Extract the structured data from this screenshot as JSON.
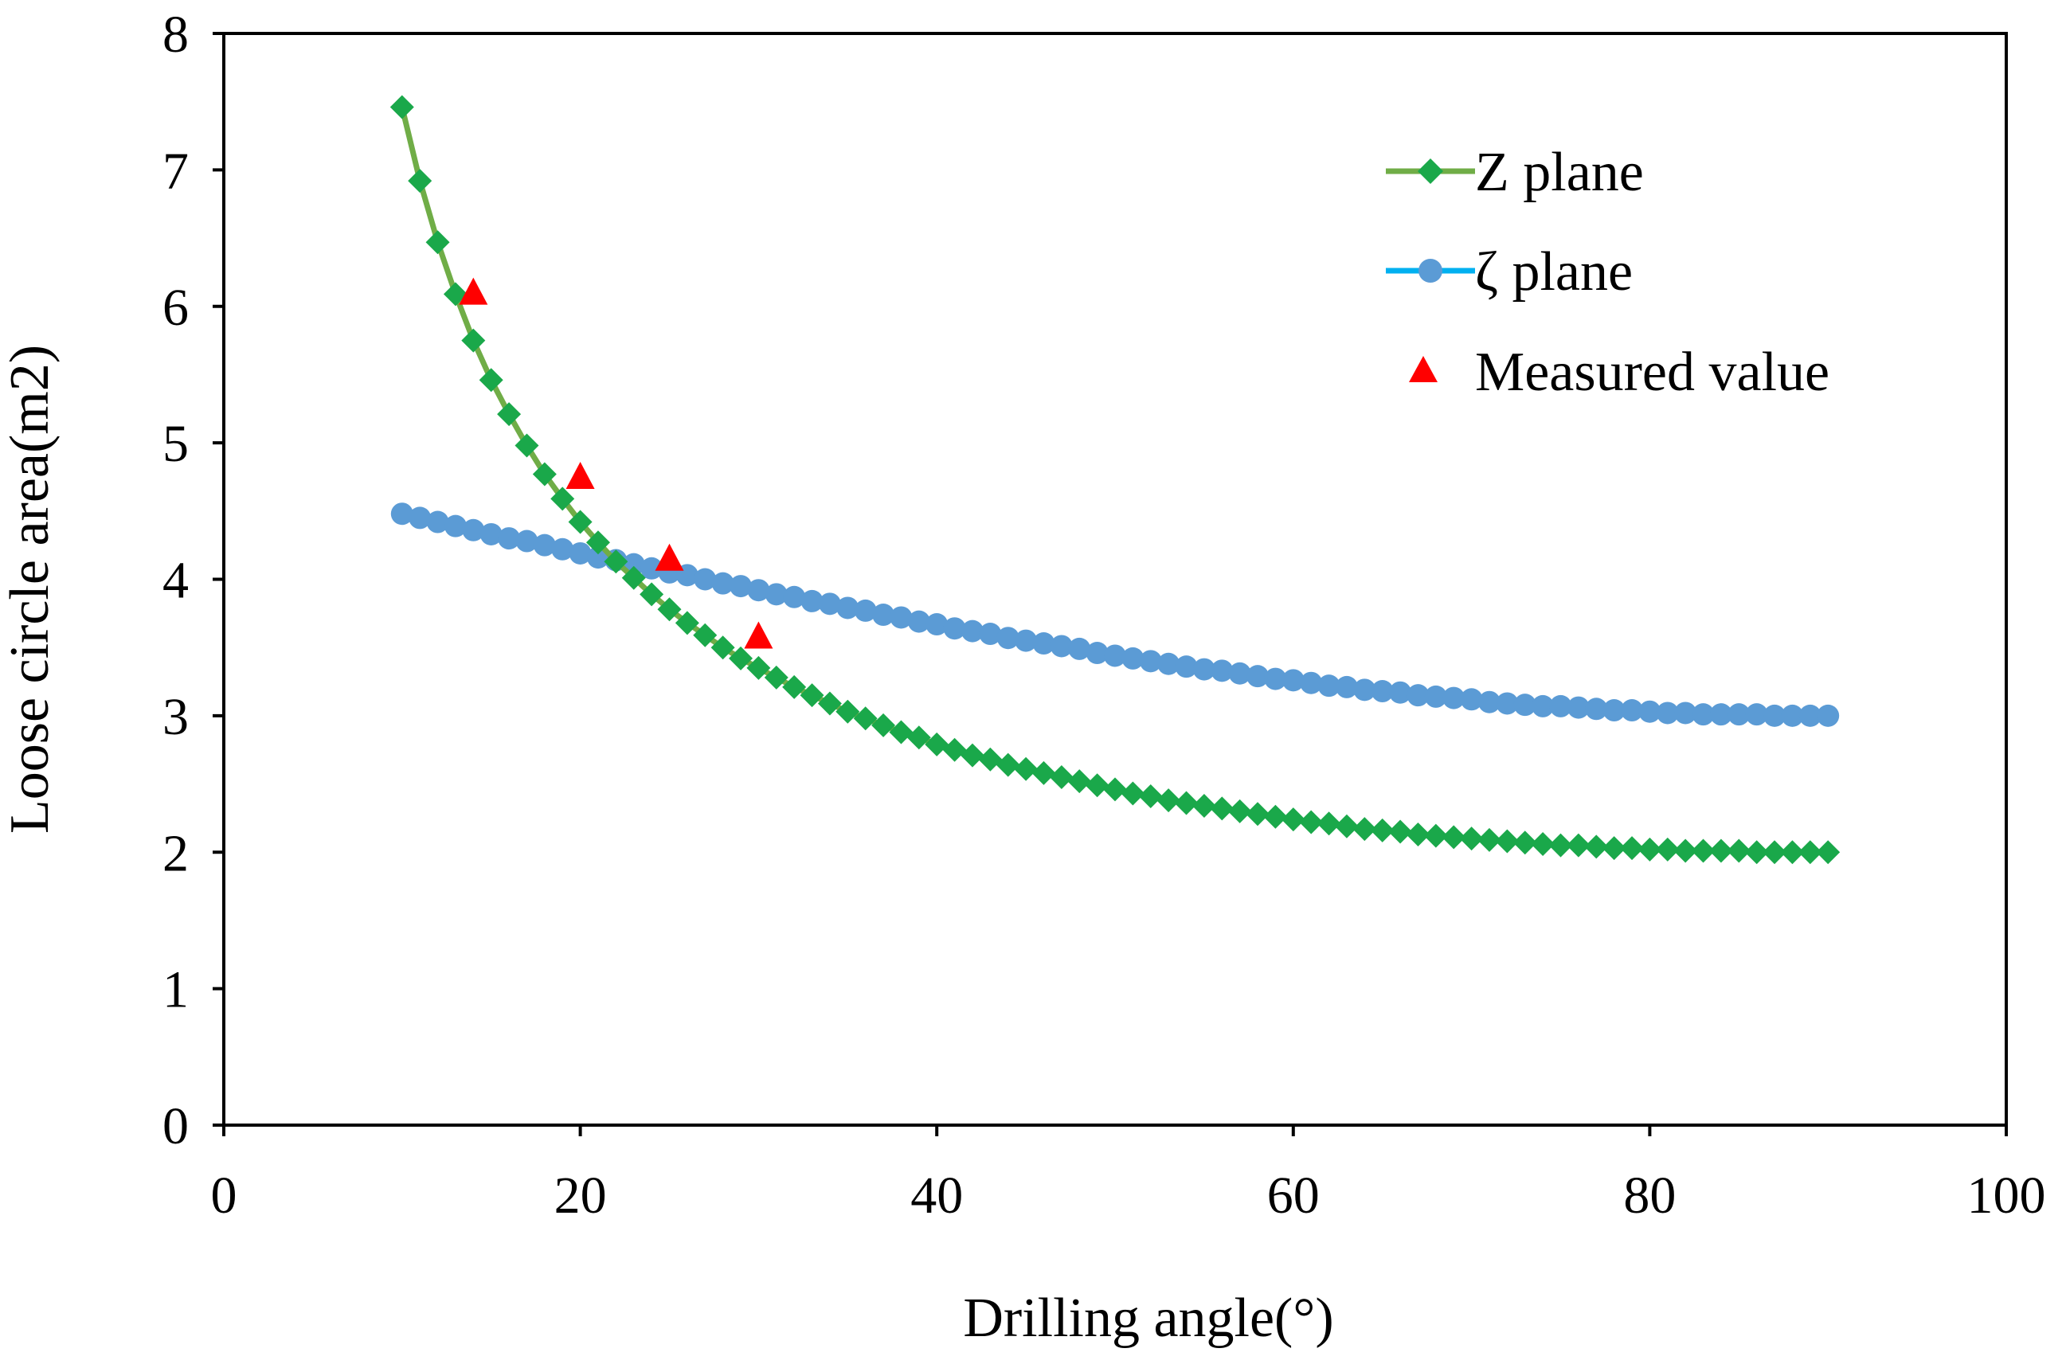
{
  "chart_data": {
    "type": "line",
    "title": "",
    "xlabel": "Drilling angle(°)",
    "ylabel": "Loose circle area(m2)",
    "xlim": [
      0,
      100
    ],
    "ylim": [
      0,
      8
    ],
    "xticks": [
      0,
      20,
      40,
      60,
      80,
      100
    ],
    "yticks": [
      0,
      1,
      2,
      3,
      4,
      5,
      6,
      7,
      8
    ],
    "xtick_labels": [
      "0",
      "20",
      "40",
      "60",
      "80",
      "100"
    ],
    "ytick_labels": [
      "0",
      "1",
      "2",
      "3",
      "4",
      "5",
      "6",
      "7",
      "8"
    ],
    "grid": false,
    "legend_position": "top-right",
    "x": [
      10,
      11,
      12,
      13,
      14,
      15,
      16,
      17,
      18,
      19,
      20,
      21,
      22,
      23,
      24,
      25,
      26,
      27,
      28,
      29,
      30,
      31,
      32,
      33,
      34,
      35,
      36,
      37,
      38,
      39,
      40,
      41,
      42,
      43,
      44,
      45,
      46,
      47,
      48,
      49,
      50,
      51,
      52,
      53,
      54,
      55,
      56,
      57,
      58,
      59,
      60,
      61,
      62,
      63,
      64,
      65,
      66,
      67,
      68,
      69,
      70,
      71,
      72,
      73,
      74,
      75,
      76,
      77,
      78,
      79,
      80,
      81,
      82,
      83,
      84,
      85,
      86,
      87,
      88,
      89,
      90
    ],
    "series": [
      {
        "name": "Z plane",
        "color": "#1aa84a",
        "line_color": "#70ad47",
        "marker": "diamond",
        "values": [
          7.46,
          6.92,
          6.47,
          6.09,
          5.75,
          5.46,
          5.21,
          4.98,
          4.77,
          4.59,
          4.42,
          4.27,
          4.13,
          4.01,
          3.89,
          3.78,
          3.68,
          3.59,
          3.5,
          3.42,
          3.35,
          3.28,
          3.21,
          3.15,
          3.09,
          3.03,
          2.98,
          2.93,
          2.88,
          2.84,
          2.79,
          2.75,
          2.71,
          2.68,
          2.64,
          2.61,
          2.58,
          2.55,
          2.52,
          2.49,
          2.46,
          2.43,
          2.41,
          2.38,
          2.36,
          2.34,
          2.32,
          2.3,
          2.28,
          2.26,
          2.24,
          2.22,
          2.21,
          2.19,
          2.17,
          2.16,
          2.15,
          2.13,
          2.12,
          2.11,
          2.1,
          2.09,
          2.08,
          2.07,
          2.06,
          2.05,
          2.05,
          2.04,
          2.03,
          2.03,
          2.02,
          2.02,
          2.01,
          2.01,
          2.01,
          2.01,
          2.0,
          2.0,
          2.0,
          2.0,
          2.0
        ]
      },
      {
        "name": "ζ plane",
        "color": "#5b9bd5",
        "line_color": "#00b0f0",
        "marker": "circle",
        "values": [
          4.48,
          4.45,
          4.42,
          4.39,
          4.36,
          4.33,
          4.3,
          4.28,
          4.25,
          4.22,
          4.19,
          4.16,
          4.14,
          4.11,
          4.08,
          4.05,
          4.03,
          4.0,
          3.97,
          3.95,
          3.92,
          3.89,
          3.87,
          3.84,
          3.82,
          3.79,
          3.77,
          3.74,
          3.72,
          3.69,
          3.67,
          3.64,
          3.62,
          3.6,
          3.57,
          3.55,
          3.53,
          3.51,
          3.49,
          3.46,
          3.44,
          3.42,
          3.4,
          3.38,
          3.36,
          3.34,
          3.33,
          3.31,
          3.29,
          3.27,
          3.26,
          3.24,
          3.22,
          3.21,
          3.19,
          3.18,
          3.17,
          3.15,
          3.14,
          3.13,
          3.12,
          3.1,
          3.09,
          3.08,
          3.07,
          3.07,
          3.06,
          3.05,
          3.04,
          3.04,
          3.03,
          3.02,
          3.02,
          3.01,
          3.01,
          3.01,
          3.01,
          3.0,
          3.0,
          3.0,
          3.0
        ]
      }
    ],
    "measured": {
      "name": "Measured value",
      "color": "#ff0000",
      "marker": "triangle",
      "x": [
        14,
        20,
        25,
        30
      ],
      "values": [
        6.1,
        4.75,
        4.15,
        3.58
      ]
    }
  }
}
